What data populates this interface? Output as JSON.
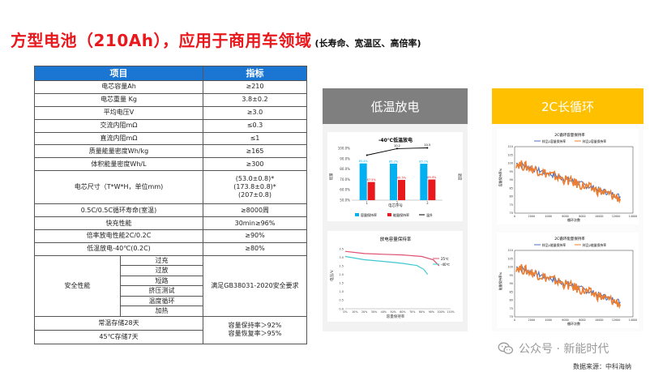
{
  "title": {
    "main": "方型电池（210Ah），应用于商用车领域",
    "sub": "(长寿命、宽温区、高倍率)"
  },
  "table": {
    "headers": [
      "项目",
      "指标"
    ],
    "rows": [
      {
        "item": "电芯容量Ah",
        "value": "≥210"
      },
      {
        "item": "电芯重量 Kg",
        "value": "3.8±0.2"
      },
      {
        "item": "平均电压V",
        "value": "≥3.0"
      },
      {
        "item": "交流内阻mΩ",
        "value": "≤0.3"
      },
      {
        "item": "直流内阻mΩ",
        "value": "≤1"
      },
      {
        "item": "质量能量密度Wh/kg",
        "value": "≥165"
      },
      {
        "item": "体积能量密度Wh/L",
        "value": "≥300"
      },
      {
        "item": "电芯尺寸（T*W*H，单位mm)",
        "value_lines": [
          "(53.0±0.8)*",
          "(173.8±0.8)*",
          "(207±0.8)"
        ]
      },
      {
        "item": "0.5C/0.5C循环寿命(室温)",
        "value": "≥8000周"
      },
      {
        "item": "快充性能",
        "value": "30min≥96%"
      },
      {
        "item": "倍率放电性能2C/0.2C",
        "value": "≥90%"
      },
      {
        "item": "低温放电-40℃(0.2C)",
        "value": "≥80%"
      }
    ],
    "safety": {
      "label": "安全性能",
      "tests": [
        "过充",
        "过放",
        "短路",
        "挤压测试",
        "温度循环",
        "加热"
      ],
      "value": "满足GB38031-2020安全要求"
    },
    "storage": {
      "items": [
        "常温存储28天",
        "45℃存储7天"
      ],
      "values": [
        "容量保持率＞92%",
        "容量恢复率＞95%"
      ]
    }
  },
  "left_panel": {
    "header": "低温放电",
    "chart1": {
      "title": "-40℃低温放电",
      "ylabel_left": "能量",
      "ylabel_right": "温度",
      "xlabel": "电芯序号",
      "legend": [
        "容量保持率",
        "能量保持率",
        "温升"
      ],
      "chart_data": {
        "type": "bar",
        "categories": [
          "1",
          "2",
          "3"
        ],
        "y_ticks": [
          "100.0%",
          "90.0%",
          "80.0%",
          "70.0%",
          "60.0%",
          "50.0%"
        ],
        "series": [
          {
            "name": "容量保持率",
            "values": [
              85.4,
              85.2,
              85.1
            ],
            "color": "#00b0f0"
          },
          {
            "name": "能量保持率",
            "values": [
              67.5,
              69.5,
              69.9
            ],
            "color": "#e8181d"
          },
          {
            "name": "温升",
            "values": [
              7.5,
              10.2,
              10.5
            ],
            "color": "#000000"
          }
        ],
        "temp_labels": [
          "",
          "10.2",
          "10.5"
        ]
      }
    },
    "chart2": {
      "title": "放电容量保持率",
      "ylabel": "电压/V",
      "xlabel": "容量保持率",
      "legend": [
        "25℃",
        "-40℃"
      ],
      "chart_data": {
        "type": "line",
        "x_ticks": [
          "0%",
          "10%",
          "20%",
          "30%",
          "40%",
          "50%",
          "60%",
          "70%",
          "80%",
          "90%",
          "100%",
          "110%"
        ],
        "y_ticks": [
          "3.5",
          "3.0",
          "2.5",
          "2.0",
          "1.5",
          "1.0",
          "0.5",
          "0.0"
        ],
        "series": [
          {
            "name": "25℃",
            "color": "#e05070",
            "points": [
              [
                0,
                3.35
              ],
              [
                20,
                3.22
              ],
              [
                40,
                3.18
              ],
              [
                60,
                3.14
              ],
              [
                80,
                3.05
              ],
              [
                92,
                2.85
              ],
              [
                98,
                2.5
              ]
            ]
          },
          {
            "name": "-40℃",
            "color": "#40c8d0",
            "points": [
              [
                0,
                3.05
              ],
              [
                20,
                2.86
              ],
              [
                40,
                2.76
              ],
              [
                60,
                2.65
              ],
              [
                75,
                2.52
              ],
              [
                82,
                2.3
              ],
              [
                86,
                2.0
              ]
            ]
          }
        ]
      }
    }
  },
  "right_panel": {
    "header": "2C长循环",
    "chart3": {
      "title": "2C循环容量保持率",
      "legend": [
        "样品1容量保持率",
        "样品2容量保持率"
      ],
      "xlabel": "循环次数",
      "ylabel": "容量保持率%",
      "chart_data": {
        "type": "line",
        "x_ticks": [
          "0",
          "2000",
          "4000",
          "6000",
          "8000",
          "10000",
          "12000",
          "14000"
        ],
        "y_ticks": [
          "110",
          "105",
          "100",
          "95",
          "90",
          "85",
          "80",
          "75",
          "70"
        ],
        "series": [
          {
            "name": "样品1容量保持率",
            "color": "#4472c4",
            "start": 100,
            "end": 80
          },
          {
            "name": "样品2容量保持率",
            "color": "#ed7d31",
            "start": 100,
            "end": 79
          }
        ]
      }
    },
    "chart4": {
      "title": "2C循环能量保持率",
      "legend": [
        "样品1能量保持率",
        "样品2能量保持率"
      ],
      "xlabel": "循环次数",
      "ylabel": "能量保持率%",
      "chart_data": {
        "type": "line",
        "x_ticks": [
          "0",
          "2000",
          "4000",
          "6000",
          "8000",
          "10000",
          "12000",
          "14000"
        ],
        "y_ticks": [
          "110",
          "105",
          "100",
          "95",
          "90",
          "85",
          "80",
          "75",
          "70"
        ],
        "series": [
          {
            "name": "样品1能量保持率",
            "color": "#4472c4",
            "start": 100,
            "end": 79
          },
          {
            "name": "样品2能量保持率",
            "color": "#ed7d31",
            "start": 100,
            "end": 78
          }
        ]
      }
    }
  },
  "watermark": "公众号 · 新能时代",
  "source": "数据来源：中科海纳"
}
